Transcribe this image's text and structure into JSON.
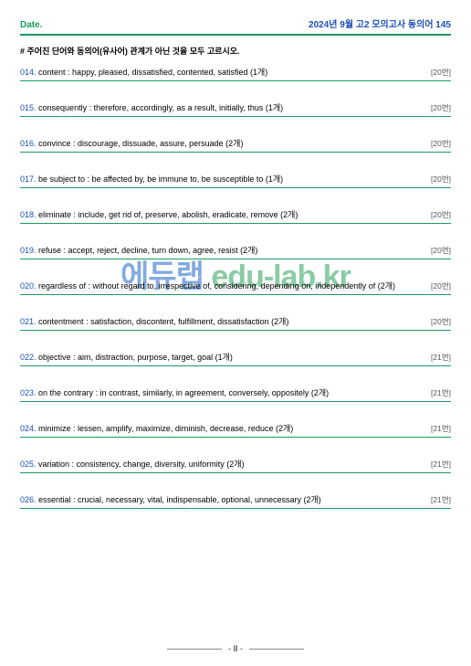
{
  "header": {
    "date_label": "Date.",
    "title": "2024년 9월 고2 모의고사  동의어 145"
  },
  "instruction": "# 주어진 단어와 동의어(유사어) 관계가 아닌 것을 모두 고르시오.",
  "items": [
    {
      "num": "014.",
      "text": " content : happy, pleased, dissatisfied, contented, satisfied (1개)",
      "tag": "[20번]"
    },
    {
      "num": "015.",
      "text": " consequently : therefore, accordingly, as a result, initially, thus (1개)",
      "tag": "[20번]"
    },
    {
      "num": "016.",
      "text": " convince : discourage, dissuade, assure, persuade (2개)",
      "tag": "[20번]"
    },
    {
      "num": "017.",
      "text": " be subject to : be affected by, be immune to, be susceptible to (1개)",
      "tag": "[20번]"
    },
    {
      "num": "018.",
      "text": " eliminate : include, get rid of, preserve, abolish, eradicate, remove (2개)",
      "tag": "[20번]"
    },
    {
      "num": "019.",
      "text": " refuse : accept, reject, decline, turn down, agree, resist (2개)",
      "tag": "[20번]"
    },
    {
      "num": "020.",
      "text": " regardless of : without regard to, irrespective of, considering, depending on, independently of (2개)",
      "tag": "[20번]"
    },
    {
      "num": "021.",
      "text": " contentment : satisfaction, discontent, fulfillment, dissatisfaction (2개)",
      "tag": "[20번]"
    },
    {
      "num": "022.",
      "text": " objective : aim, distraction, purpose, target, goal (1개)",
      "tag": "[21번]"
    },
    {
      "num": "023.",
      "text": " on the contrary : in contrast, similarly, in agreement, conversely, oppositely (2개)",
      "tag": "[21번]"
    },
    {
      "num": "024.",
      "text": " minimize : lessen, amplify, maximize, diminish, decrease, reduce (2개)",
      "tag": "[21번]"
    },
    {
      "num": "025.",
      "text": " variation : consistency, change, diversity, uniformity (2개)",
      "tag": "[21번]"
    },
    {
      "num": "026.",
      "text": " essential : crucial, necessary, vital, indispensable, optional, unnecessary (2개)",
      "tag": "[21번]"
    }
  ],
  "watermark": {
    "korean": "에듀랩",
    "eng": " edu-lab.kr"
  },
  "footer": {
    "page": "- 8 -"
  },
  "colors": {
    "green": "#1a9b5e",
    "blue": "#1a4fb5"
  }
}
